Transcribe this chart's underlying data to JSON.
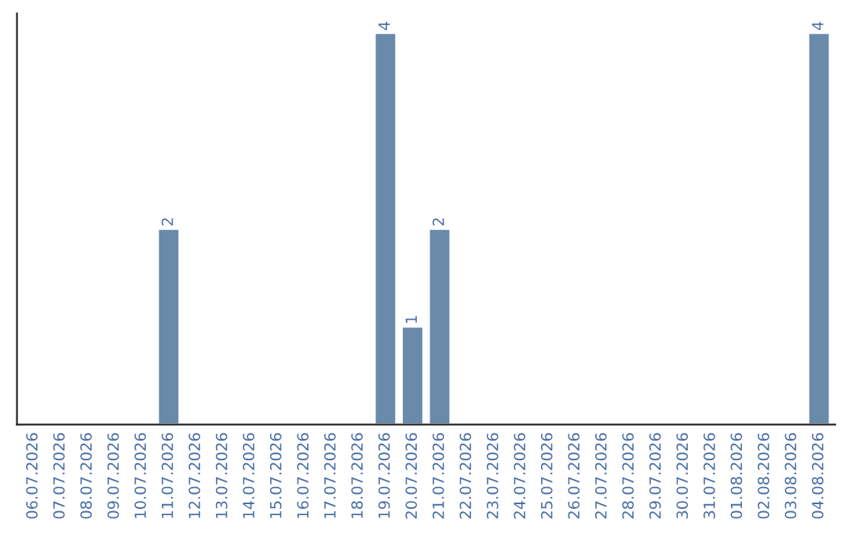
{
  "chart_data": {
    "type": "bar",
    "categories": [
      "06.07.2026",
      "07.07.2026",
      "08.07.2026",
      "09.07.2026",
      "10.07.2026",
      "11.07.2026",
      "12.07.2026",
      "13.07.2026",
      "14.07.2026",
      "15.07.2026",
      "16.07.2026",
      "17.07.2026",
      "18.07.2026",
      "19.07.2026",
      "20.07.2026",
      "21.07.2026",
      "22.07.2026",
      "23.07.2026",
      "24.07.2026",
      "25.07.2026",
      "26.07.2026",
      "27.07.2026",
      "28.07.2026",
      "29.07.2026",
      "30.07.2026",
      "31.07.2026",
      "01.08.2026",
      "02.08.2026",
      "03.08.2026",
      "04.08.2026"
    ],
    "values": [
      null,
      null,
      null,
      null,
      null,
      2,
      null,
      null,
      null,
      null,
      null,
      null,
      null,
      4,
      1,
      2,
      null,
      null,
      null,
      null,
      null,
      null,
      null,
      null,
      null,
      null,
      null,
      null,
      null,
      4
    ],
    "value_labels": [
      null,
      null,
      null,
      null,
      null,
      "2",
      null,
      null,
      null,
      null,
      null,
      null,
      null,
      "4",
      "1",
      "2",
      null,
      null,
      null,
      null,
      null,
      null,
      null,
      null,
      null,
      null,
      null,
      null,
      null,
      "4"
    ],
    "color": "#6a8aaa",
    "tick_labels": "x"
  }
}
